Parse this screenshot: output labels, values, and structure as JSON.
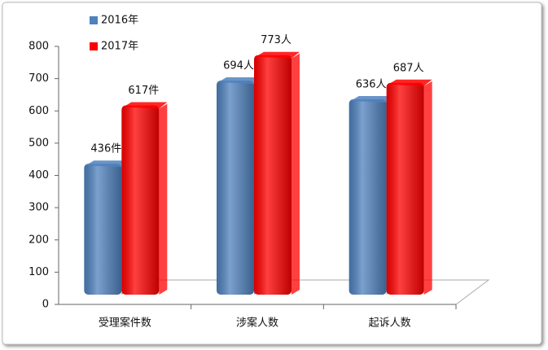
{
  "chart_data": {
    "type": "bar",
    "categories": [
      "受理案件数",
      "涉案人数",
      "起诉人数"
    ],
    "series": [
      {
        "name": "2016年",
        "color": "#4f81bd",
        "values": [
          436,
          694,
          636
        ],
        "value_labels": [
          "436件",
          "694人",
          "636人"
        ]
      },
      {
        "name": "2017年",
        "color": "#ff0000",
        "values": [
          617,
          773,
          687
        ],
        "value_labels": [
          "617件",
          "773人",
          "687人"
        ]
      }
    ],
    "ylim": [
      0,
      800
    ],
    "yticks": [
      0,
      100,
      200,
      300,
      400,
      500,
      600,
      700,
      800
    ]
  }
}
